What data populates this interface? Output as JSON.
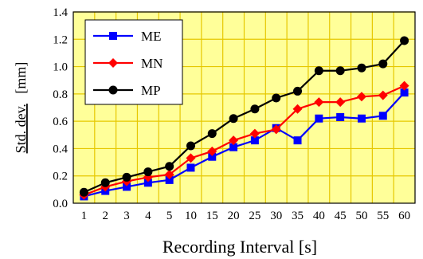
{
  "chart_data": {
    "type": "line",
    "xlabel": "Recording Interval    [s]",
    "ylabel_main": "Std. dev.",
    "ylabel_unit": "[mm]",
    "categories": [
      "1",
      "2",
      "3",
      "4",
      "5",
      "10",
      "15",
      "20",
      "25",
      "30",
      "35",
      "40",
      "45",
      "50",
      "55",
      "60"
    ],
    "y_ticks": [
      "0.0",
      "0.2",
      "0.4",
      "0.6",
      "0.8",
      "1.0",
      "1.2",
      "1.4"
    ],
    "ylim": [
      0,
      1.4
    ],
    "grid": true,
    "legend_position": "top-left",
    "series": [
      {
        "name": "ME",
        "color": "#0000ff",
        "marker": "square",
        "values": [
          0.05,
          0.09,
          0.12,
          0.15,
          0.17,
          0.26,
          0.34,
          0.41,
          0.46,
          0.55,
          0.46,
          0.62,
          0.63,
          0.62,
          0.64,
          0.81
        ]
      },
      {
        "name": "MN",
        "color": "#ff0000",
        "marker": "diamond",
        "values": [
          0.06,
          0.12,
          0.16,
          0.19,
          0.21,
          0.33,
          0.38,
          0.46,
          0.51,
          0.54,
          0.69,
          0.74,
          0.74,
          0.78,
          0.79,
          0.86
        ]
      },
      {
        "name": "MP",
        "color": "#000000",
        "marker": "circle",
        "values": [
          0.08,
          0.15,
          0.19,
          0.23,
          0.27,
          0.42,
          0.51,
          0.62,
          0.69,
          0.77,
          0.82,
          0.97,
          0.97,
          0.99,
          1.02,
          1.19
        ]
      }
    ]
  },
  "colors": {
    "plot_background": "#ffff99",
    "grid": "#e6c800"
  }
}
